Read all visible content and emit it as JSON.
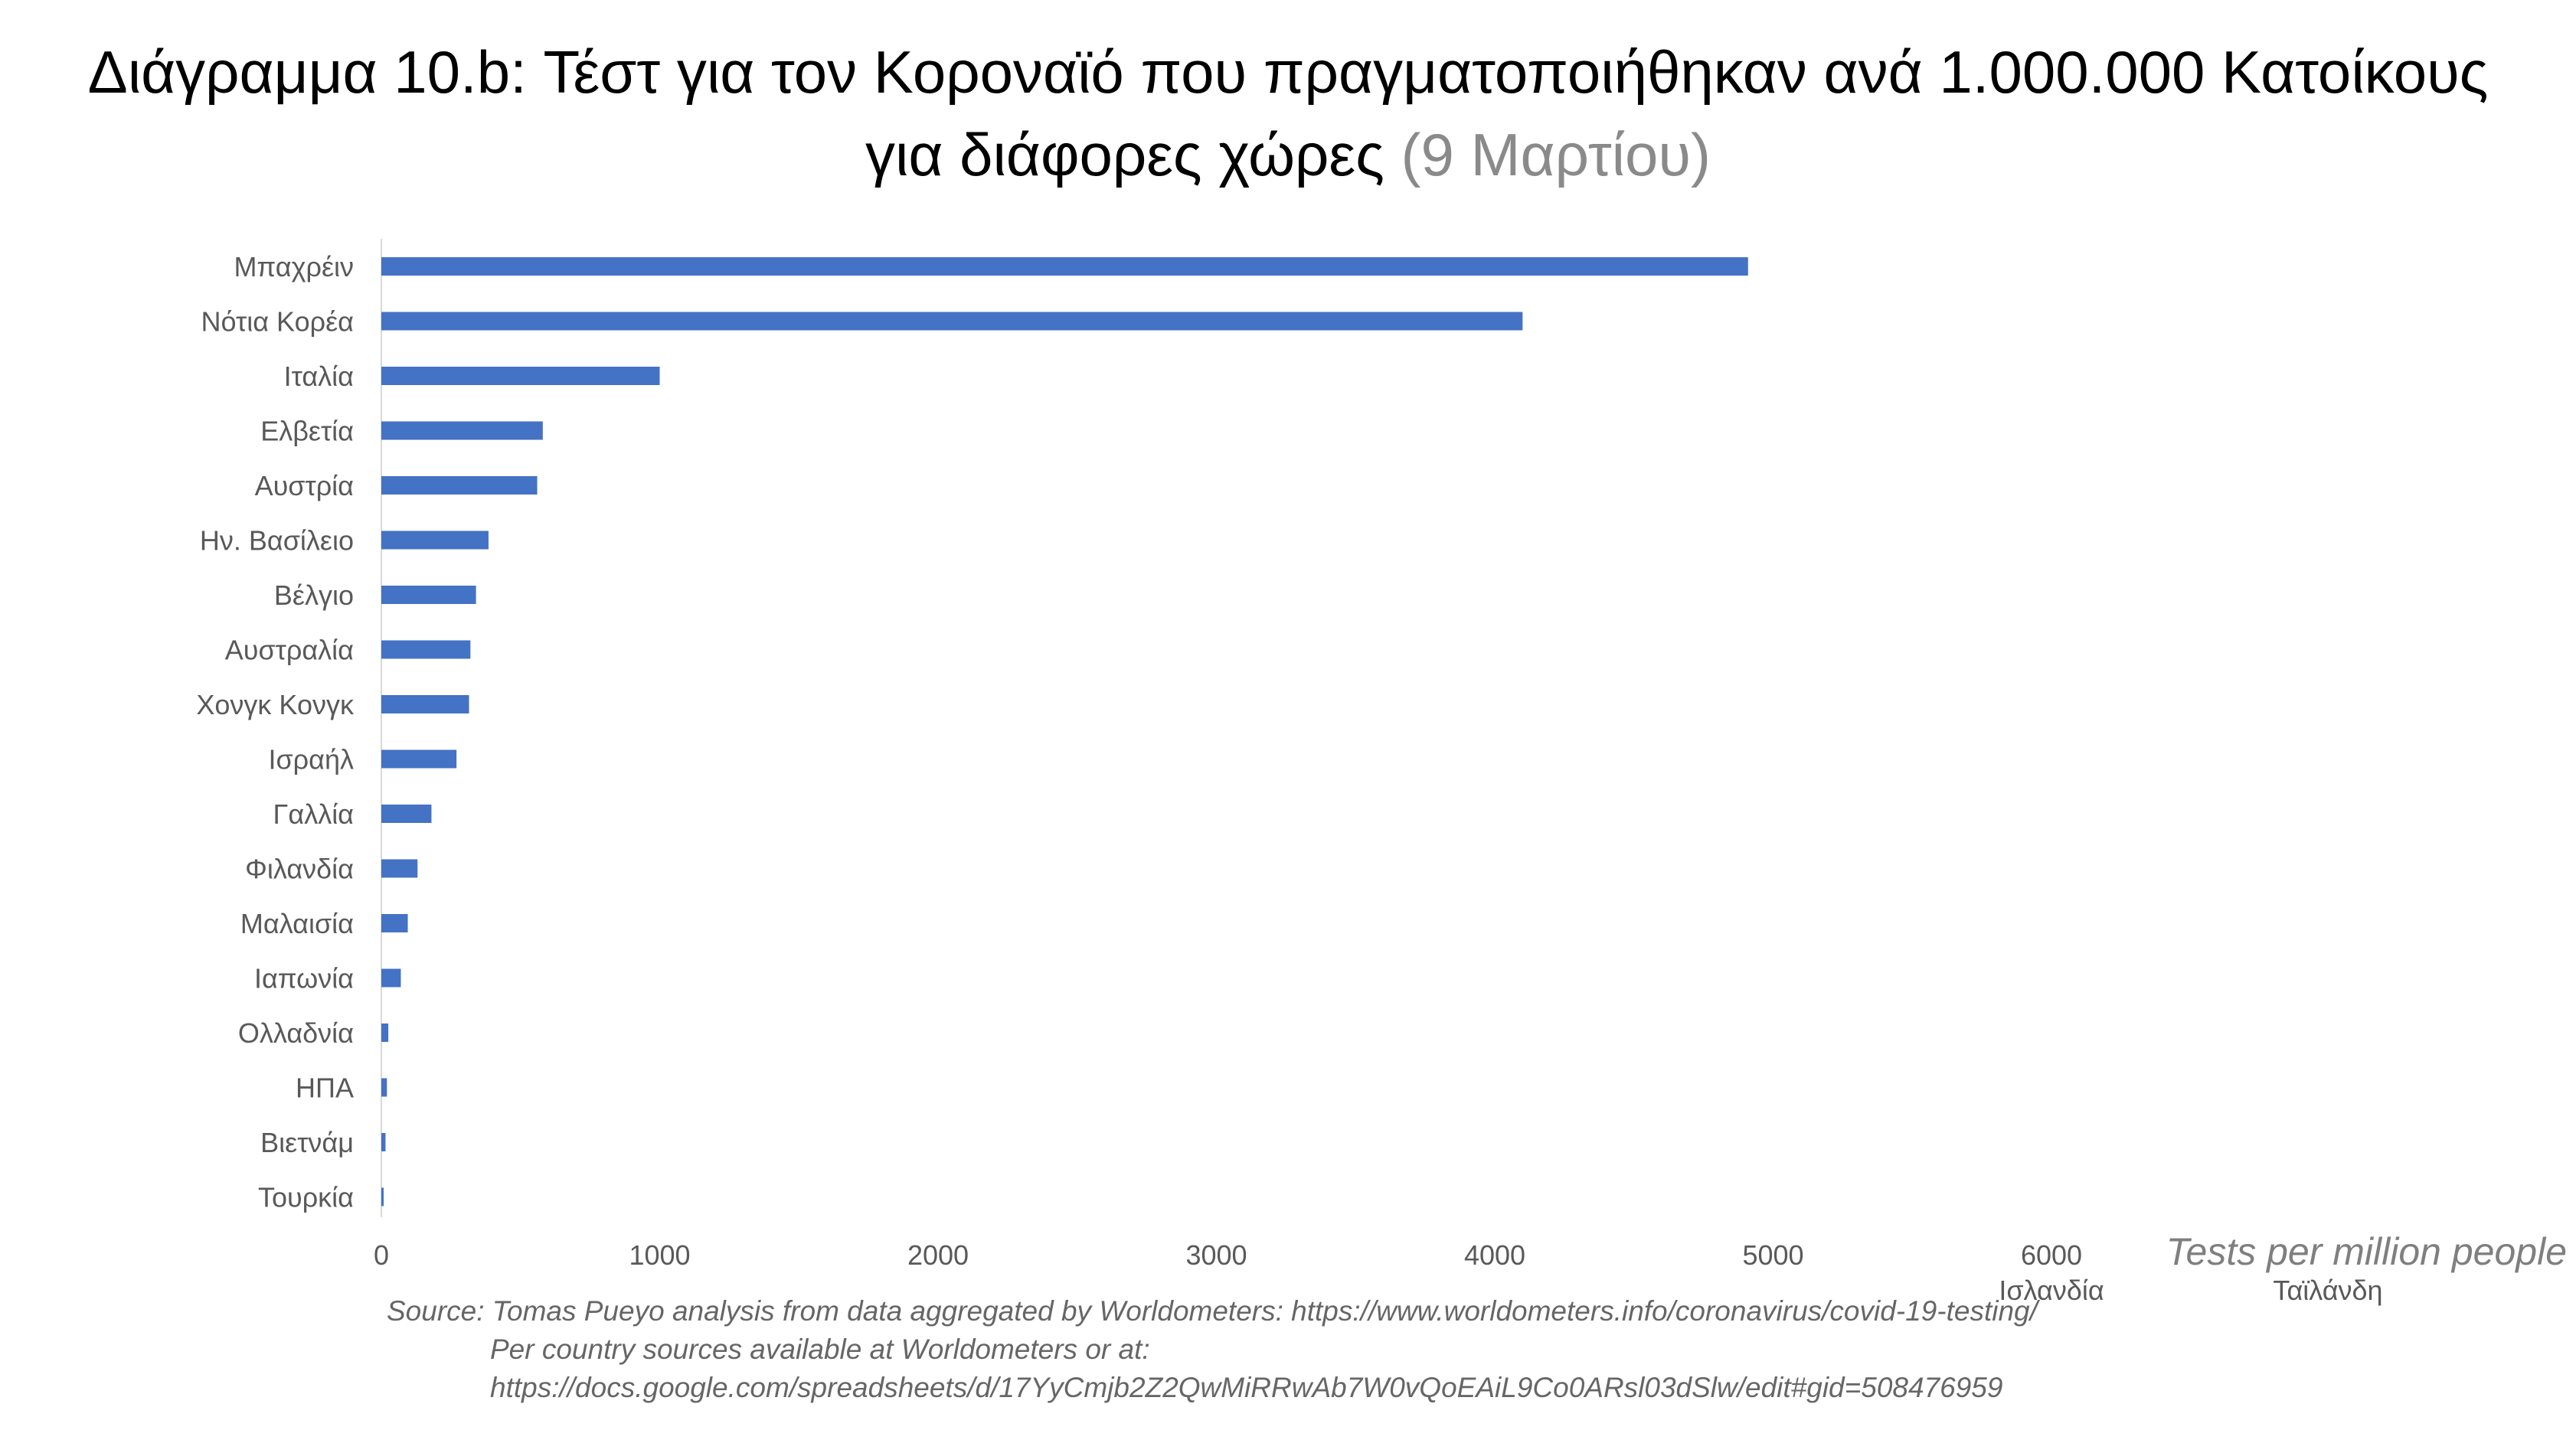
{
  "title": {
    "main": "Διάγραμμα 10.b:  Τέστ για τον Κοροναϊό που πραγματοποιήθηκαν ανά 1.000.000 Κατοίκους\nγια διάφορες χώρες ",
    "date": "(9 Μαρτίου)"
  },
  "chart_data": {
    "type": "bar",
    "orientation": "horizontal",
    "categories": [
      "Μπαχρέιν",
      "Νότια Κορέα",
      "Ιταλία",
      "Ελβετία",
      "Αυστρία",
      "Ην. Βασίλειο",
      "Βέλγιο",
      "Αυστραλία",
      "Χονγκ Κονγκ",
      "Ισραήλ",
      "Γαλλία",
      "Φιλανδία",
      "Μαλαισία",
      "Ιαπωνία",
      "Ολλαδνία",
      "ΗΠΑ",
      "Βιετνάμ",
      "Τουρκία"
    ],
    "values": [
      4910,
      4100,
      1000,
      580,
      560,
      385,
      340,
      320,
      315,
      270,
      180,
      130,
      95,
      70,
      25,
      20,
      15,
      5
    ],
    "xlim": [
      0,
      6000
    ],
    "x_ticks": [
      0,
      1000,
      2000,
      3000,
      4000,
      5000,
      6000
    ],
    "xlabel": "Tests per million people",
    "offscale_labels": [
      {
        "label": "Ισλανδία",
        "under_tick": 6000
      },
      {
        "label": "Ταϊλάνδη",
        "after_tick": 6000
      }
    ],
    "bar_color": "#4472c4",
    "grid": false,
    "legend": "none"
  },
  "source": {
    "line1": "Source: Tomas Pueyo analysis from data aggregated by Worldometers: https://www.worldometers.info/coronavirus/covid-19-testing/",
    "line2": "Per country sources available at Worldometers or at:",
    "line3": "https://docs.google.com/spreadsheets/d/17YyCmjb2Z2QwMiRRwAb7W0vQoEAiL9Co0ARsl03dSlw/edit#gid=508476959"
  }
}
